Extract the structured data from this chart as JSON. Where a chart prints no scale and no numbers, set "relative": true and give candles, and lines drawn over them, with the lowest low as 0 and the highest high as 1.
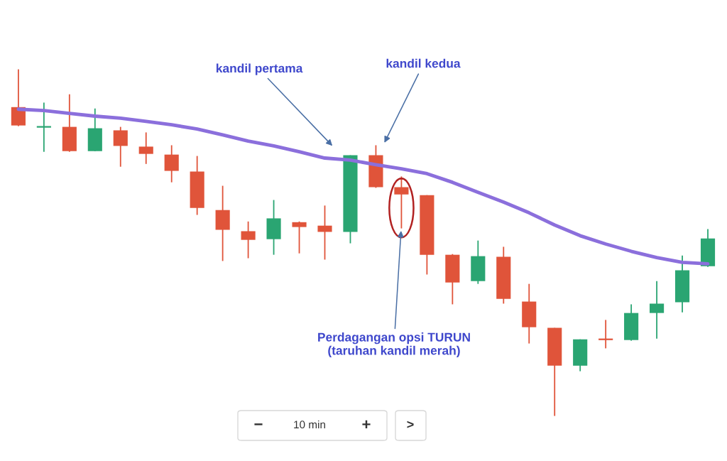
{
  "chart_data": {
    "type": "candlestick",
    "relative": true,
    "categories": [
      null,
      null,
      null,
      null,
      null,
      null,
      null,
      null,
      null,
      null,
      null,
      null,
      null,
      null,
      null,
      null,
      null,
      null,
      null,
      null,
      null,
      null,
      null,
      null,
      null,
      null,
      null,
      null
    ],
    "ohlc": [
      [
        0.891,
        1,
        0.836,
        0.838
      ],
      [
        0.834,
        0.904,
        0.762,
        0.834
      ],
      [
        0.834,
        0.928,
        0.762,
        0.764
      ],
      [
        0.764,
        0.887,
        0.764,
        0.83
      ],
      [
        0.824,
        0.834,
        0.719,
        0.779
      ],
      [
        0.777,
        0.818,
        0.727,
        0.756
      ],
      [
        0.754,
        0.781,
        0.674,
        0.707
      ],
      [
        0.705,
        0.75,
        0.58,
        0.6
      ],
      [
        0.594,
        0.664,
        0.447,
        0.537
      ],
      [
        0.533,
        0.561,
        0.455,
        0.508
      ],
      [
        0.51,
        0.623,
        0.465,
        0.57
      ],
      [
        0.559,
        0.561,
        0.469,
        0.545
      ],
      [
        0.549,
        0.607,
        0.451,
        0.531
      ],
      [
        0.531,
        0.752,
        0.498,
        0.752
      ],
      [
        0.752,
        0.781,
        0.658,
        0.66
      ],
      [
        0.66,
        0.691,
        0.541,
        0.639
      ],
      [
        0.637,
        0.637,
        0.408,
        0.465
      ],
      [
        0.465,
        0.467,
        0.322,
        0.385
      ],
      [
        0.389,
        0.506,
        0.381,
        0.461
      ],
      [
        0.459,
        0.488,
        0.324,
        0.338
      ],
      [
        0.33,
        0.381,
        0.209,
        0.256
      ],
      [
        0.254,
        0.254,
        0,
        0.145
      ],
      [
        0.145,
        0.221,
        0.129,
        0.221
      ],
      [
        0.221,
        0.277,
        0.195,
        0.221
      ],
      [
        0.219,
        0.322,
        0.217,
        0.297
      ],
      [
        0.297,
        0.389,
        0.223,
        0.324
      ],
      [
        0.328,
        0.463,
        0.299,
        0.42
      ],
      [
        0.432,
        0.539,
        0.43,
        0.512
      ]
    ],
    "colors": [
      "#e0543a",
      "#2aa572",
      "#e0543a",
      "#2aa572",
      "#e0543a",
      "#e0543a",
      "#e0543a",
      "#e0543a",
      "#e0543a",
      "#e0543a",
      "#2aa572",
      "#e0543a",
      "#e0543a",
      "#2aa572",
      "#e0543a",
      "#e0543a",
      "#e0543a",
      "#e0543a",
      "#2aa572",
      "#e0543a",
      "#e0543a",
      "#e0543a",
      "#2aa572",
      "#e0543a",
      "#2aa572",
      "#2aa572",
      "#2aa572",
      "#2aa572"
    ],
    "series": [
      {
        "type": "line",
        "color": "#8b6fdc",
        "values": [
          0.885,
          0.881,
          0.873,
          0.865,
          0.859,
          0.85,
          0.84,
          0.828,
          0.811,
          0.793,
          0.779,
          0.762,
          0.744,
          0.738,
          0.725,
          0.713,
          0.699,
          0.674,
          0.645,
          0.617,
          0.586,
          0.551,
          0.52,
          0.496,
          0.475,
          0.457,
          0.443,
          0.439
        ]
      }
    ],
    "annotations": [
      "kandil pertama",
      "kandil kedua",
      "Perdagangan opsi TURUN\n(taruhan kandil merah)",
      "−",
      "10 min",
      "+",
      ">"
    ]
  }
}
